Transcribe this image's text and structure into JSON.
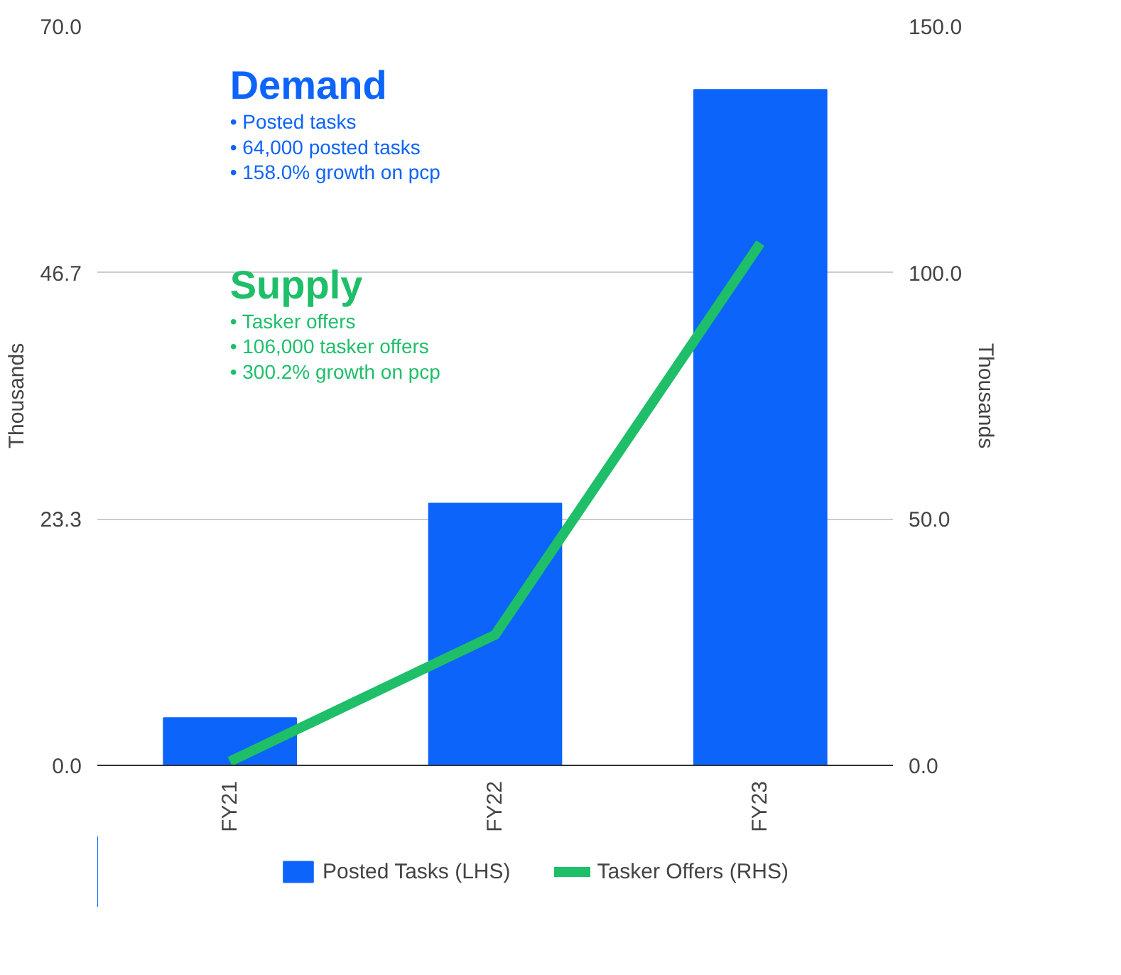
{
  "chart_data": {
    "type": "bar",
    "categories": [
      "FY21",
      "FY22",
      "FY23"
    ],
    "series": [
      {
        "name": "Posted Tasks (LHS)",
        "color": "#0d64fb",
        "values": [
          4.5,
          24.8,
          64.0
        ]
      },
      {
        "name": "Tasker Offers (RHS)",
        "color": "#1fbf6a",
        "type": "line",
        "axis": "y2",
        "values": [
          0.8,
          26.5,
          106
        ]
      }
    ],
    "ylim": [
      0,
      70
    ],
    "yticks": [
      {
        "value": 0,
        "label": "0.0"
      },
      {
        "value": 23.333,
        "label": "23.3"
      },
      {
        "value": 46.667,
        "label": "46.7"
      },
      {
        "value": 70,
        "label": "70.0"
      }
    ],
    "y2lim": [
      0,
      150
    ],
    "y2ticks": [
      {
        "value": 0,
        "label": "0.0"
      },
      {
        "value": 50,
        "label": "50.0"
      },
      {
        "value": 100,
        "label": "100.0"
      },
      {
        "value": 150,
        "label": "150.0"
      }
    ],
    "ylabel": "Thousands",
    "y2label": "Thousands",
    "grid": "y",
    "legend": "bottom",
    "line_style": "solid",
    "marker": "none",
    "annotations": [
      "Demand",
      "•  Posted tasks",
      "•  64,000 posted tasks",
      "•  158.0% growth on pcp",
      "Supply",
      "•  Tasker offers",
      "•  106,000 tasker offers",
      "•  300.2% growth on pcp"
    ]
  }
}
